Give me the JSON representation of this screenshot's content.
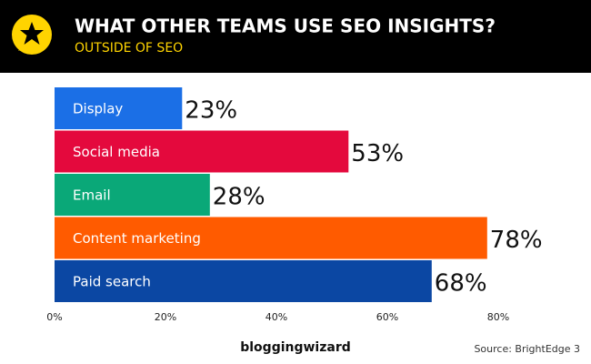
{
  "header": {
    "title": "WHAT OTHER TEAMS USE SEO INSIGHTS?",
    "subtitle": "OUTSIDE OF SEO"
  },
  "chart_data": {
    "type": "bar",
    "orientation": "horizontal",
    "categories": [
      "Display",
      "Social media",
      "Email",
      "Content marketing",
      "Paid search"
    ],
    "values": [
      23,
      53,
      28,
      78,
      68
    ],
    "value_labels": [
      "23%",
      "53%",
      "28%",
      "78%",
      "68%"
    ],
    "colors": [
      "#1b6fe6",
      "#e4093d",
      "#0aa878",
      "#ff5b00",
      "#0b47a3"
    ],
    "xlim": [
      0,
      80
    ],
    "xticks": [
      {
        "value": 0,
        "label": "0%"
      },
      {
        "value": 20,
        "label": "20%"
      },
      {
        "value": 40,
        "label": "40%"
      },
      {
        "value": 60,
        "label": "60%"
      },
      {
        "value": 80,
        "label": "80%"
      }
    ]
  },
  "footer": {
    "brand": "bloggingwizard",
    "source": "Source: BrightEdge 3"
  }
}
